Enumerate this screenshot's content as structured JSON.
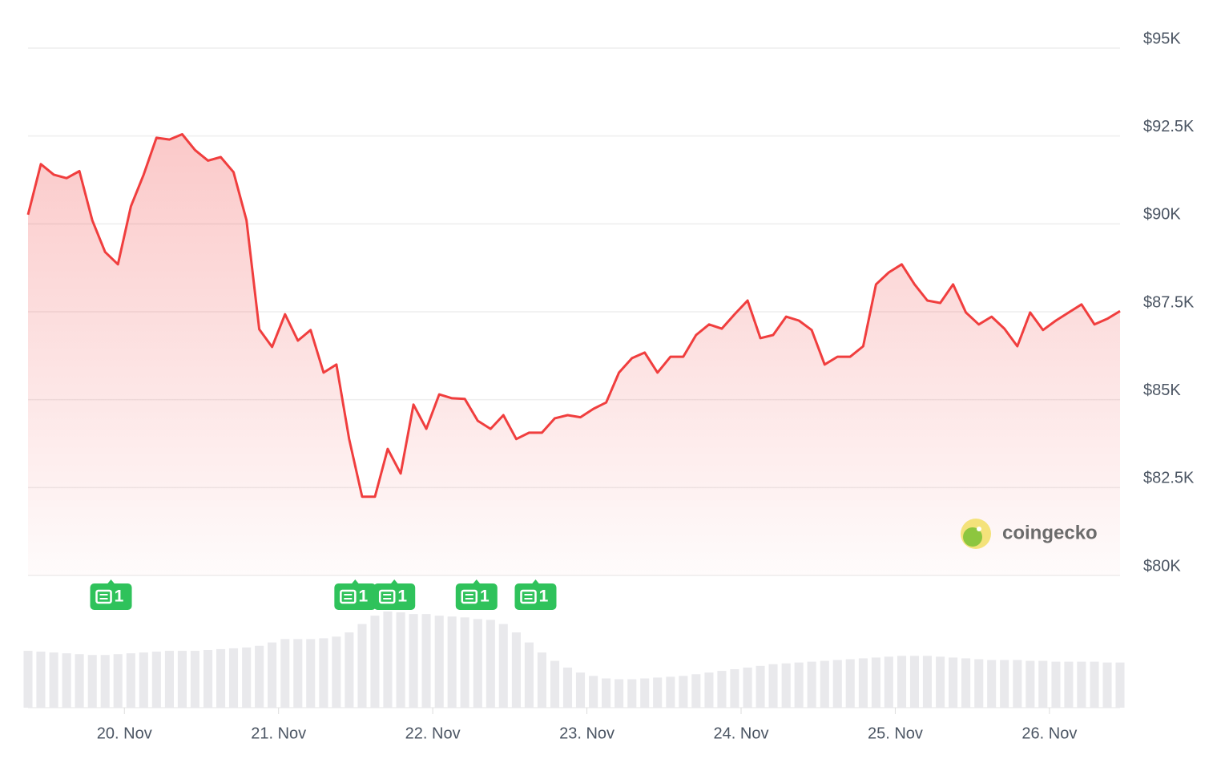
{
  "chart_data": {
    "type": "line",
    "x": [
      19.375,
      19.458,
      19.542,
      19.625,
      19.708,
      19.792,
      19.875,
      19.958,
      20.042,
      20.125,
      20.208,
      20.292,
      20.375,
      20.458,
      20.542,
      20.625,
      20.708,
      20.792,
      20.875,
      20.958,
      21.042,
      21.125,
      21.208,
      21.292,
      21.375,
      21.458,
      21.542,
      21.625,
      21.708,
      21.792,
      21.875,
      21.958,
      22.042,
      22.125,
      22.208,
      22.292,
      22.375,
      22.458,
      22.542,
      22.625,
      22.708,
      22.792,
      22.875,
      22.958,
      23.042,
      23.125,
      23.208,
      23.292,
      23.375,
      23.458,
      23.542,
      23.625,
      23.708,
      23.792,
      23.875,
      23.958,
      24.042,
      24.125,
      24.208,
      24.292,
      24.375,
      24.458,
      24.542,
      24.625,
      24.708,
      24.792,
      24.875,
      24.958,
      25.042,
      25.125,
      25.208,
      25.292,
      25.375,
      25.458,
      25.542,
      25.625,
      25.708,
      25.792,
      25.875,
      25.958,
      26.042,
      26.125,
      26.208,
      26.292,
      26.375,
      26.458
    ],
    "series": [
      {
        "color": "#f03e3e",
        "values": [
          90260,
          91700,
          91400,
          91300,
          91500,
          90100,
          89200,
          88850,
          90500,
          91400,
          92450,
          92400,
          92550,
          92100,
          91800,
          91900,
          91470,
          90100,
          87000,
          86500,
          87430,
          86680,
          86980,
          85770,
          86000,
          83880,
          82240,
          82240,
          83600,
          82900,
          84860,
          84170,
          85150,
          85040,
          85020,
          84400,
          84170,
          84560,
          83880,
          84060,
          84060,
          84470,
          84560,
          84500,
          84740,
          84920,
          85770,
          86180,
          86340,
          85770,
          86220,
          86220,
          86840,
          87140,
          87020,
          87430,
          87820,
          86750,
          86840,
          87360,
          87250,
          86980,
          86000,
          86220,
          86220,
          86520,
          88280,
          88620,
          88850,
          88280,
          87820,
          87750,
          88280,
          87480,
          87140,
          87360,
          87020,
          86520,
          87480,
          86980,
          87250,
          87480,
          87710,
          87140,
          87300,
          87520
        ]
      }
    ],
    "volume": [
      68,
      67,
      66,
      65,
      64,
      63,
      63,
      64,
      65,
      66,
      67,
      68,
      68,
      68,
      69,
      70,
      71,
      72,
      74,
      78,
      82,
      82,
      82,
      83,
      85,
      90,
      100,
      110,
      115,
      114,
      112,
      112,
      110,
      109,
      108,
      106,
      105,
      100,
      90,
      78,
      66,
      56,
      48,
      42,
      38,
      35,
      34,
      34,
      35,
      36,
      37,
      38,
      40,
      42,
      44,
      46,
      48,
      50,
      52,
      53,
      54,
      55,
      56,
      57,
      58,
      59,
      60,
      61,
      62,
      62,
      62,
      61,
      60,
      59,
      58,
      57,
      57,
      57,
      56,
      56,
      55,
      55,
      55,
      55,
      54,
      54
    ],
    "news": {
      "x": [
        19.913,
        21.497,
        21.751,
        22.284,
        22.667
      ],
      "counts": [
        1,
        1,
        1,
        1,
        1
      ]
    },
    "xlim": [
      19.375,
      26.458
    ],
    "xticks": [
      {
        "value": 20,
        "label": "20. Nov"
      },
      {
        "value": 21,
        "label": "21. Nov"
      },
      {
        "value": 22,
        "label": "22. Nov"
      },
      {
        "value": 23,
        "label": "23. Nov"
      },
      {
        "value": 24,
        "label": "24. Nov"
      },
      {
        "value": 25,
        "label": "25. Nov"
      },
      {
        "value": 26,
        "label": "26. Nov"
      }
    ],
    "ylim": [
      80000,
      95000
    ],
    "yticks": [
      {
        "value": 80000,
        "label": "$80K"
      },
      {
        "value": 82500,
        "label": "$82.5K"
      },
      {
        "value": 85000,
        "label": "$85K"
      },
      {
        "value": 87500,
        "label": "$87.5K"
      },
      {
        "value": 90000,
        "label": "$90K"
      },
      {
        "value": 92500,
        "label": "$92.5K"
      },
      {
        "value": 95000,
        "label": "$95K"
      }
    ],
    "grid": true,
    "brand": "coingecko"
  }
}
